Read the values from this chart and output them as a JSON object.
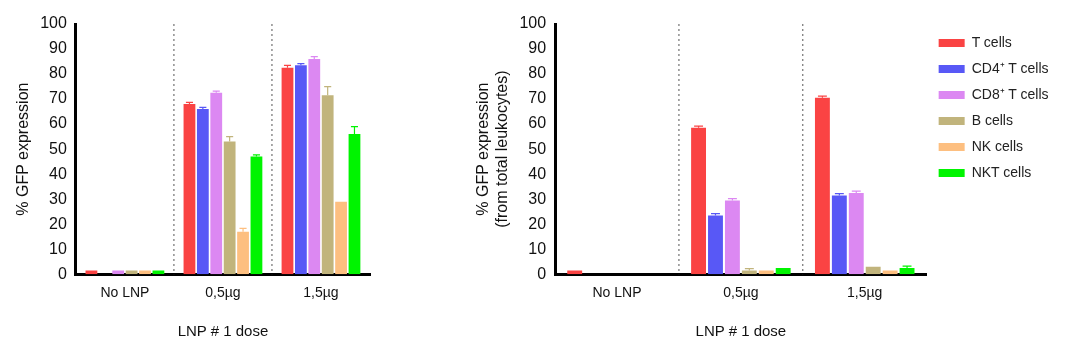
{
  "chart_data": [
    {
      "type": "bar",
      "xlabel": "LNP # 1 dose",
      "ylabel": "% GFP expression",
      "categories": [
        "No LNP",
        "0,5µg",
        "1,5µg"
      ],
      "ylim": [
        0,
        100
      ],
      "yticks": [
        0,
        10,
        20,
        30,
        40,
        50,
        60,
        70,
        80,
        90,
        100
      ],
      "grid": false,
      "legend": false,
      "series": [
        {
          "color": "#fa4343",
          "values": [
            1.5,
            68,
            82.5
          ],
          "errors": [
            null,
            0.7,
            1
          ]
        },
        {
          "color": "#5858f6",
          "values": [
            0,
            66,
            83.5
          ],
          "errors": [
            null,
            0.7,
            0.7
          ]
        },
        {
          "color": "#dc88f2",
          "values": [
            1.5,
            72.5,
            86
          ],
          "errors": [
            null,
            0.7,
            1
          ]
        },
        {
          "color": "#c1b47c",
          "values": [
            1.5,
            53,
            71.5
          ],
          "errors": [
            null,
            2,
            3.5
          ]
        },
        {
          "color": "#fdbf80",
          "values": [
            1.5,
            17,
            29
          ],
          "errors": [
            null,
            1.3,
            null
          ]
        },
        {
          "color": "#00f400",
          "values": [
            1.5,
            47,
            56
          ],
          "errors": [
            null,
            0.7,
            3
          ]
        }
      ]
    },
    {
      "type": "bar",
      "xlabel": "LNP # 1 dose",
      "ylabel": "% GFP expression\n(from total leukocytes)",
      "categories": [
        "No LNP",
        "0,5µg",
        "1,5µg"
      ],
      "ylim": [
        0,
        100
      ],
      "yticks": [
        0,
        10,
        20,
        30,
        40,
        50,
        60,
        70,
        80,
        90,
        100
      ],
      "grid": false,
      "legend": "right",
      "series": [
        {
          "name": "T cells",
          "color": "#fa4343",
          "values": [
            1.5,
            58.5,
            70.5
          ],
          "errors": [
            null,
            0.7,
            0.7
          ]
        },
        {
          "name": "CD4⁺ T cells",
          "color": "#5858f6",
          "values": [
            0,
            23.5,
            31.5
          ],
          "errors": [
            null,
            0.7,
            0.7
          ]
        },
        {
          "name": "CD8⁺ T cells",
          "color": "#dc88f2",
          "values": [
            0,
            29.5,
            32.5
          ],
          "errors": [
            null,
            0.7,
            0.7
          ]
        },
        {
          "name": "B cells",
          "color": "#c1b47c",
          "values": [
            0,
            1.5,
            3
          ],
          "errors": [
            null,
            0.7,
            null
          ]
        },
        {
          "name": "NK cells",
          "color": "#fdbf80",
          "values": [
            0,
            1.5,
            1.5
          ],
          "errors": [
            null,
            null,
            null
          ]
        },
        {
          "name": "NKT cells",
          "color": "#00f400",
          "values": [
            0,
            2.5,
            2.5
          ],
          "errors": [
            null,
            null,
            0.7
          ]
        }
      ]
    }
  ]
}
